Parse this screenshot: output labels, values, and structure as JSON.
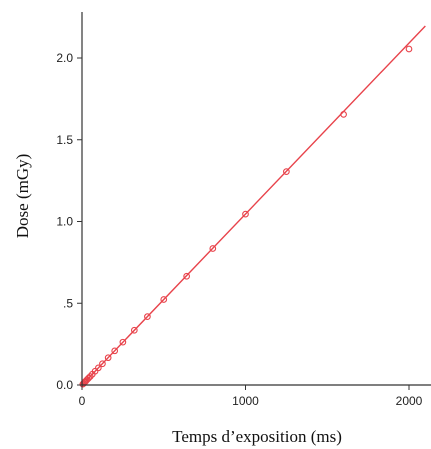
{
  "chart_data": {
    "type": "scatter",
    "title": "",
    "xlabel": "Temps d’exposition (ms)",
    "ylabel": "Dose (mGy)",
    "xlim": [
      0,
      2100
    ],
    "ylim": [
      0,
      2.25
    ],
    "x_ticks": [
      {
        "value": 0,
        "label": "0"
      },
      {
        "value": 1000,
        "label": "1000"
      },
      {
        "value": 2000,
        "label": "2000"
      }
    ],
    "y_ticks": [
      {
        "value": 0,
        "label": "0.0"
      },
      {
        "value": 0.5,
        "label": ".5"
      },
      {
        "value": 1.0,
        "label": "1.0"
      },
      {
        "value": 1.5,
        "label": "1.5"
      },
      {
        "value": 2.0,
        "label": "2.0"
      }
    ],
    "grid": false,
    "colors": {
      "series": "#e8434b",
      "axis": "#333333"
    },
    "series": [
      {
        "x": [
          5,
          10,
          16,
          20,
          25,
          32,
          40,
          50,
          63,
          80,
          100,
          125,
          160,
          200,
          250,
          320,
          400,
          500,
          640,
          800,
          1000,
          1250,
          1600,
          2000
        ],
        "y": [
          0.005,
          0.01,
          0.017,
          0.021,
          0.026,
          0.034,
          0.042,
          0.052,
          0.066,
          0.084,
          0.105,
          0.13,
          0.167,
          0.209,
          0.262,
          0.335,
          0.418,
          0.523,
          0.665,
          0.835,
          1.045,
          1.305,
          1.655,
          2.055
        ]
      }
    ],
    "fit_line": {
      "x": [
        0,
        2100
      ],
      "y": [
        0,
        2.196
      ]
    }
  }
}
